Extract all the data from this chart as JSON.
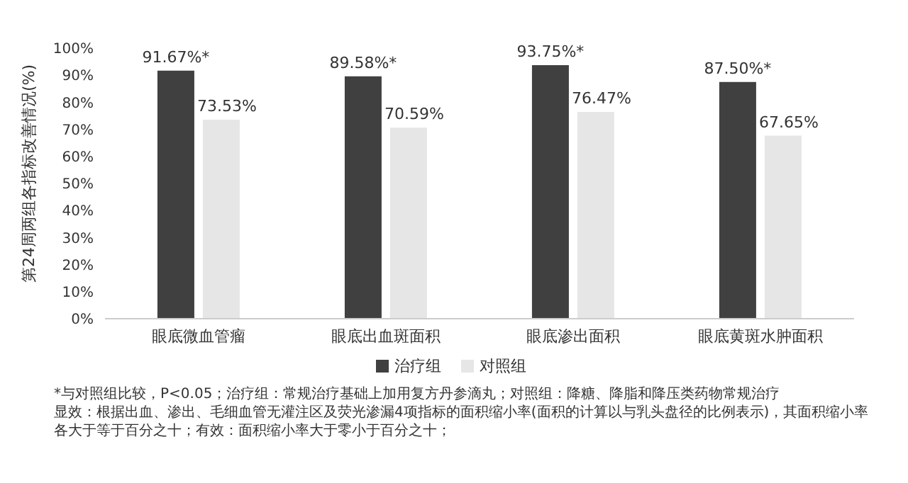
{
  "chart_data": {
    "type": "bar",
    "ylabel": "第24周两组各指标改善情况(%)",
    "categories": [
      "眼底微血管瘤",
      "眼底出血斑面积",
      "眼底渗出面积",
      "眼底黄斑水肿面积"
    ],
    "series": [
      {
        "name": "治疗组",
        "color": "#404040",
        "values": [
          91.67,
          89.58,
          93.75,
          87.5
        ],
        "value_labels": [
          "91.67%*",
          "89.58%*",
          "93.75%*",
          "87.50%*"
        ]
      },
      {
        "name": "对照组",
        "color": "#e6e6e6",
        "values": [
          73.53,
          70.59,
          76.47,
          67.65
        ],
        "value_labels": [
          "73.53%",
          "70.59%",
          "76.47%",
          "67.65%"
        ]
      }
    ],
    "ylim": [
      0,
      100
    ],
    "yticks": [
      {
        "value": 0,
        "label": "0%"
      },
      {
        "value": 10,
        "label": "10%"
      },
      {
        "value": 20,
        "label": "20%"
      },
      {
        "value": 30,
        "label": "30%"
      },
      {
        "value": 40,
        "label": "40%"
      },
      {
        "value": 50,
        "label": "50%"
      },
      {
        "value": 60,
        "label": "60%"
      },
      {
        "value": 70,
        "label": "70%"
      },
      {
        "value": 80,
        "label": "80%"
      },
      {
        "value": 90,
        "label": "90%"
      },
      {
        "value": 100,
        "label": "100%"
      }
    ],
    "grid": false,
    "legend": "bottom",
    "annotations": [
      "*与对照组比较，P<0.05；治疗组：常规治疗基础上加用复方丹参滴丸；对照组：降糖、降脂和降压类药物常规治疗",
      "显效：根据出血、渗出、毛细血管无灌注区及荧光渗漏4项指标的面积缩小率(面积的计算以与乳头盘径的比例表示)，其面积缩小率",
      "各大于等于百分之十；有效：面积缩小率大于零小于百分之十；"
    ]
  }
}
